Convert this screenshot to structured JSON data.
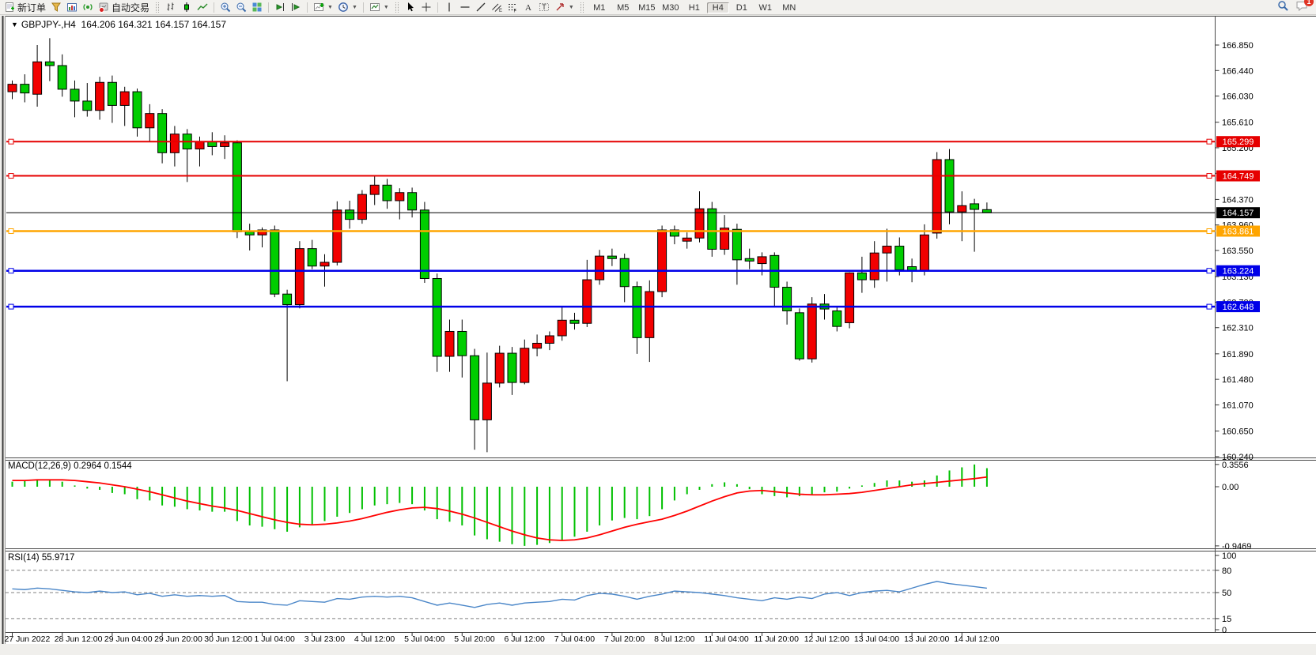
{
  "toolbar": {
    "new_order_label": "新订单",
    "auto_trading_label": "自动交易",
    "timeframes": [
      {
        "label": "M1",
        "active": false
      },
      {
        "label": "M5",
        "active": false
      },
      {
        "label": "M15",
        "active": false
      },
      {
        "label": "M30",
        "active": false
      },
      {
        "label": "H1",
        "active": false
      },
      {
        "label": "H4",
        "active": true
      },
      {
        "label": "D1",
        "active": false
      },
      {
        "label": "W1",
        "active": false
      },
      {
        "label": "MN",
        "active": false
      }
    ],
    "chat_badge": "1",
    "icons": [
      "new-order",
      "funnel",
      "chart-window",
      "signal",
      "auto-trading",
      "bar-chart",
      "candlestick-chart",
      "line-chart",
      "zoom-in",
      "zoom-out",
      "tile-windows",
      "chart-shift",
      "auto-scroll",
      "indicators",
      "periods",
      "templates",
      "cursor",
      "crosshair",
      "vertical-line",
      "horizontal-line",
      "trendline",
      "equidistant-channel",
      "fibonacci",
      "text",
      "text-label",
      "arrows",
      "search",
      "chat"
    ]
  },
  "chart": {
    "header": {
      "collapse_icon": "▼",
      "symbol": "GBPJPY-,H4",
      "ohlc": "164.206 164.321 164.157 164.157"
    },
    "price_axis": {
      "ticks": [
        "166.850",
        "166.440",
        "166.030",
        "165.610",
        "165.200",
        "164.790",
        "164.370",
        "163.960",
        "163.550",
        "163.130",
        "162.720",
        "162.310",
        "161.890",
        "161.480",
        "161.070",
        "160.650",
        "160.240"
      ]
    },
    "time_axis": {
      "labels": [
        "27 Jun 2022",
        "28 Jun 12:00",
        "29 Jun 04:00",
        "29 Jun 20:00",
        "30 Jun 12:00",
        "1 Jul 04:00",
        "3 Jul 23:00",
        "4 Jul 12:00",
        "5 Jul 04:00",
        "5 Jul 20:00",
        "6 Jul 12:00",
        "7 Jul 04:00",
        "7 Jul 20:00",
        "8 Jul 12:00",
        "11 Jul 04:00",
        "11 Jul 20:00",
        "12 Jul 12:00",
        "13 Jul 04:00",
        "13 Jul 20:00",
        "14 Jul 12:00"
      ]
    },
    "hlines": [
      {
        "price": 165.299,
        "label": "165.299",
        "color": "#e60000",
        "width": 2,
        "markers": true,
        "current": false
      },
      {
        "price": 164.749,
        "label": "164.749",
        "color": "#e60000",
        "width": 2,
        "markers": true,
        "current": false
      },
      {
        "price": 164.157,
        "label": "164.157",
        "color": "#000000",
        "width": 1,
        "markers": false,
        "current": true
      },
      {
        "price": 163.861,
        "label": "163.861",
        "color": "#ffa500",
        "width": 2.5,
        "markers": true,
        "current": false
      },
      {
        "price": 163.224,
        "label": "163.224",
        "color": "#0000e8",
        "width": 2.5,
        "markers": true,
        "current": false
      },
      {
        "price": 162.648,
        "label": "162.648",
        "color": "#0000e8",
        "width": 2.5,
        "markers": true,
        "current": false
      }
    ],
    "colors": {
      "up": "#f20000",
      "down": "#00cd00",
      "outline": "#000000",
      "wick": "#000000",
      "macd_hist": "#00c000",
      "macd_signal": "#ff0000",
      "rsi_line": "#4a86c8",
      "axis_text": "#000000",
      "panel_border": "#4a4a4a"
    },
    "candles": [
      [
        166.1,
        166.28,
        165.98,
        166.22
      ],
      [
        166.22,
        166.38,
        165.93,
        166.08
      ],
      [
        166.06,
        166.85,
        165.86,
        166.58
      ],
      [
        166.58,
        166.96,
        166.27,
        166.52
      ],
      [
        166.52,
        166.7,
        166.02,
        166.14
      ],
      [
        166.14,
        166.28,
        165.69,
        165.95
      ],
      [
        165.95,
        166.24,
        165.7,
        165.8
      ],
      [
        165.8,
        166.34,
        165.65,
        166.25
      ],
      [
        166.25,
        166.36,
        165.6,
        165.88
      ],
      [
        165.88,
        166.18,
        165.55,
        166.1
      ],
      [
        166.1,
        166.15,
        165.38,
        165.52
      ],
      [
        165.52,
        165.9,
        165.3,
        165.75
      ],
      [
        165.75,
        165.82,
        164.95,
        165.12
      ],
      [
        165.12,
        165.55,
        164.9,
        165.42
      ],
      [
        165.42,
        165.5,
        164.65,
        165.18
      ],
      [
        165.18,
        165.38,
        164.9,
        165.3
      ],
      [
        165.3,
        165.45,
        165.08,
        165.22
      ],
      [
        165.22,
        165.4,
        165.02,
        165.28
      ],
      [
        165.28,
        165.32,
        163.75,
        163.85
      ],
      [
        163.85,
        163.98,
        163.55,
        163.8
      ],
      [
        163.8,
        163.92,
        163.6,
        163.88
      ],
      [
        163.88,
        163.95,
        162.8,
        162.85
      ],
      [
        162.85,
        162.92,
        161.45,
        162.68
      ],
      [
        162.68,
        163.7,
        162.62,
        163.58
      ],
      [
        163.58,
        163.72,
        163.25,
        163.3
      ],
      [
        163.3,
        163.49,
        162.97,
        163.36
      ],
      [
        163.36,
        164.34,
        163.31,
        164.2
      ],
      [
        164.2,
        164.35,
        163.9,
        164.05
      ],
      [
        164.05,
        164.52,
        163.98,
        164.45
      ],
      [
        164.45,
        164.75,
        164.28,
        164.6
      ],
      [
        164.6,
        164.7,
        164.22,
        164.35
      ],
      [
        164.35,
        164.55,
        164.05,
        164.48
      ],
      [
        164.48,
        164.56,
        164.08,
        164.2
      ],
      [
        164.2,
        164.33,
        163.03,
        163.1
      ],
      [
        163.1,
        163.18,
        161.6,
        161.85
      ],
      [
        161.85,
        162.44,
        161.6,
        162.25
      ],
      [
        162.25,
        162.44,
        161.51,
        161.86
      ],
      [
        161.86,
        161.97,
        160.35,
        160.83
      ],
      [
        160.83,
        161.91,
        160.31,
        161.42
      ],
      [
        161.42,
        162.02,
        161.35,
        161.9
      ],
      [
        161.9,
        162.0,
        161.23,
        161.43
      ],
      [
        161.43,
        162.12,
        161.4,
        161.98
      ],
      [
        161.98,
        162.2,
        161.85,
        162.06
      ],
      [
        162.06,
        162.25,
        161.95,
        162.18
      ],
      [
        162.18,
        162.64,
        162.1,
        162.43
      ],
      [
        162.43,
        162.55,
        162.28,
        162.38
      ],
      [
        162.38,
        163.4,
        162.32,
        163.08
      ],
      [
        163.08,
        163.56,
        163.0,
        163.46
      ],
      [
        163.46,
        163.58,
        163.3,
        163.42
      ],
      [
        163.42,
        163.5,
        162.72,
        162.97
      ],
      [
        162.97,
        163.05,
        161.89,
        162.15
      ],
      [
        162.15,
        163.07,
        161.76,
        162.89
      ],
      [
        162.89,
        163.95,
        162.8,
        163.88
      ],
      [
        163.88,
        163.95,
        163.65,
        163.78
      ],
      [
        163.7,
        163.84,
        163.58,
        163.75
      ],
      [
        163.75,
        164.5,
        163.68,
        164.22
      ],
      [
        164.22,
        164.33,
        163.45,
        163.57
      ],
      [
        163.57,
        164.12,
        163.48,
        163.91
      ],
      [
        163.89,
        163.98,
        163.0,
        163.4
      ],
      [
        163.42,
        163.58,
        163.25,
        163.38
      ],
      [
        163.34,
        163.52,
        163.15,
        163.45
      ],
      [
        163.47,
        163.52,
        162.65,
        162.96
      ],
      [
        162.96,
        163.05,
        162.36,
        162.58
      ],
      [
        162.55,
        162.62,
        161.78,
        161.81
      ],
      [
        161.81,
        162.8,
        161.75,
        162.69
      ],
      [
        162.69,
        162.85,
        162.44,
        162.61
      ],
      [
        162.58,
        162.66,
        162.25,
        162.33
      ],
      [
        162.39,
        163.2,
        162.3,
        163.19
      ],
      [
        163.19,
        163.45,
        162.87,
        163.08
      ],
      [
        163.08,
        163.7,
        162.95,
        163.51
      ],
      [
        163.51,
        163.9,
        163.05,
        163.62
      ],
      [
        163.62,
        163.76,
        163.15,
        163.24
      ],
      [
        163.29,
        163.42,
        163.04,
        163.23
      ],
      [
        163.23,
        163.97,
        163.15,
        163.8
      ],
      [
        163.83,
        165.13,
        163.74,
        165.01
      ],
      [
        165.01,
        165.18,
        163.97,
        164.17
      ],
      [
        164.17,
        164.5,
        163.7,
        164.27
      ],
      [
        164.3,
        164.38,
        163.53,
        164.21
      ],
      [
        164.206,
        164.321,
        164.157,
        164.157
      ]
    ]
  },
  "macd": {
    "title": "MACD(12,26,9)",
    "values": "0.2964 0.1544",
    "axis_labels": [
      "0.3556",
      "0.00",
      "-0.9469"
    ],
    "histogram": [
      0.08,
      0.09,
      0.12,
      0.12,
      0.08,
      0.02,
      -0.03,
      -0.05,
      -0.1,
      -0.12,
      -0.2,
      -0.22,
      -0.3,
      -0.32,
      -0.36,
      -0.38,
      -0.4,
      -0.4,
      -0.55,
      -0.62,
      -0.64,
      -0.68,
      -0.72,
      -0.65,
      -0.6,
      -0.55,
      -0.48,
      -0.42,
      -0.36,
      -0.3,
      -0.28,
      -0.26,
      -0.28,
      -0.38,
      -0.52,
      -0.56,
      -0.62,
      -0.78,
      -0.84,
      -0.88,
      -0.92,
      -0.9469,
      -0.93,
      -0.9,
      -0.86,
      -0.8,
      -0.72,
      -0.62,
      -0.54,
      -0.5,
      -0.52,
      -0.47,
      -0.36,
      -0.22,
      -0.12,
      -0.05,
      0.04,
      0.07,
      0.04,
      -0.04,
      -0.12,
      -0.15,
      -0.17,
      -0.15,
      -0.12,
      -0.09,
      -0.08,
      -0.03,
      0.02,
      0.06,
      0.1,
      0.1,
      0.08,
      0.1,
      0.18,
      0.26,
      0.31,
      0.3556,
      0.2964
    ],
    "signal": [
      0.1,
      0.1,
      0.11,
      0.11,
      0.11,
      0.1,
      0.08,
      0.06,
      0.03,
      0.0,
      -0.04,
      -0.08,
      -0.13,
      -0.18,
      -0.23,
      -0.27,
      -0.31,
      -0.34,
      -0.38,
      -0.43,
      -0.48,
      -0.53,
      -0.57,
      -0.6,
      -0.61,
      -0.6,
      -0.58,
      -0.55,
      -0.51,
      -0.46,
      -0.41,
      -0.37,
      -0.34,
      -0.33,
      -0.35,
      -0.39,
      -0.44,
      -0.5,
      -0.57,
      -0.64,
      -0.71,
      -0.77,
      -0.82,
      -0.85,
      -0.86,
      -0.85,
      -0.82,
      -0.77,
      -0.71,
      -0.65,
      -0.6,
      -0.56,
      -0.52,
      -0.46,
      -0.39,
      -0.31,
      -0.23,
      -0.16,
      -0.1,
      -0.07,
      -0.06,
      -0.08,
      -0.1,
      -0.12,
      -0.13,
      -0.13,
      -0.12,
      -0.11,
      -0.09,
      -0.06,
      -0.03,
      0.0,
      0.03,
      0.05,
      0.07,
      0.09,
      0.11,
      0.13,
      0.1544
    ]
  },
  "rsi": {
    "title": "RSI(14)",
    "value": "55.9717",
    "levels": [
      80,
      50,
      15
    ],
    "axis_labels": [
      "100",
      "80",
      "50",
      "15",
      "0"
    ],
    "series": [
      55,
      54,
      56,
      55,
      53,
      51,
      50,
      52,
      50,
      51,
      47,
      49,
      45,
      47,
      45,
      46,
      45,
      46,
      38,
      37,
      37,
      34,
      33,
      39,
      38,
      37,
      42,
      41,
      44,
      45,
      44,
      45,
      43,
      38,
      33,
      36,
      33,
      30,
      34,
      36,
      33,
      36,
      37,
      38,
      41,
      40,
      46,
      49,
      48,
      45,
      41,
      45,
      48,
      52,
      51,
      50,
      48,
      46,
      43,
      41,
      39,
      43,
      41,
      44,
      42,
      48,
      50,
      46,
      50,
      52,
      53,
      51,
      56,
      61,
      65,
      62,
      60,
      58,
      55.97
    ]
  }
}
